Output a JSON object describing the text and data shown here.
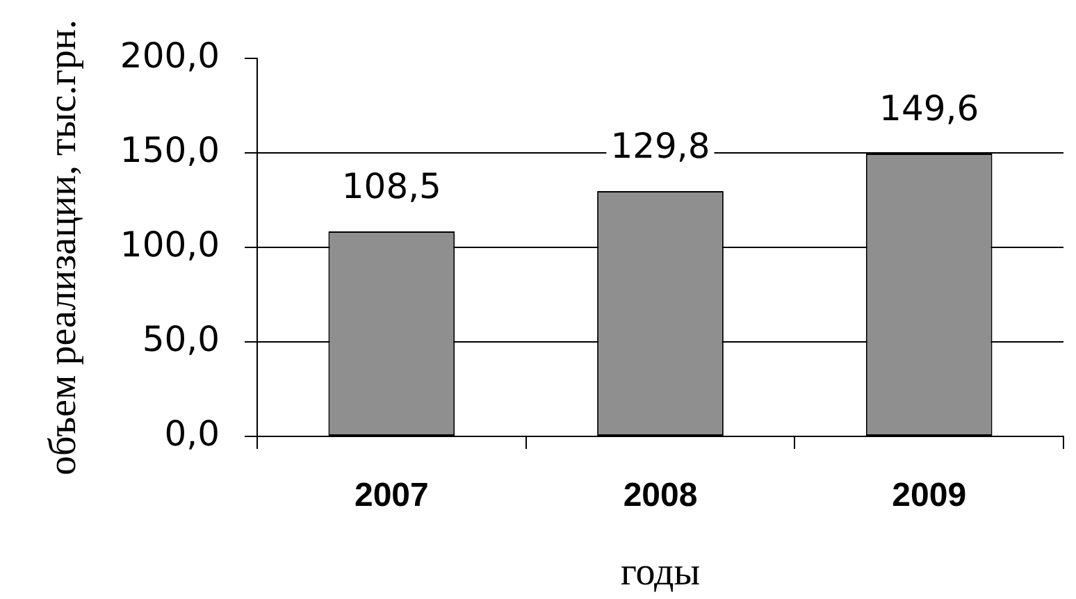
{
  "chart_data": {
    "type": "bar",
    "xlabel": "годы",
    "ylabel": "объем реализации, тыс.грн.",
    "categories": [
      "2007",
      "2008",
      "2009"
    ],
    "values": [
      108.5,
      129.8,
      149.6
    ],
    "value_labels": [
      "108,5",
      "129,8",
      "149,6"
    ],
    "color": "#8f8f8f",
    "ylim": [
      0,
      200
    ],
    "yticks": [
      {
        "value": 0,
        "label": "0,0"
      },
      {
        "value": 50,
        "label": "50,0"
      },
      {
        "value": 100,
        "label": "100,0"
      },
      {
        "value": 150,
        "label": "150,0"
      },
      {
        "value": 200,
        "label": "200,0"
      }
    ],
    "grid": "y"
  }
}
